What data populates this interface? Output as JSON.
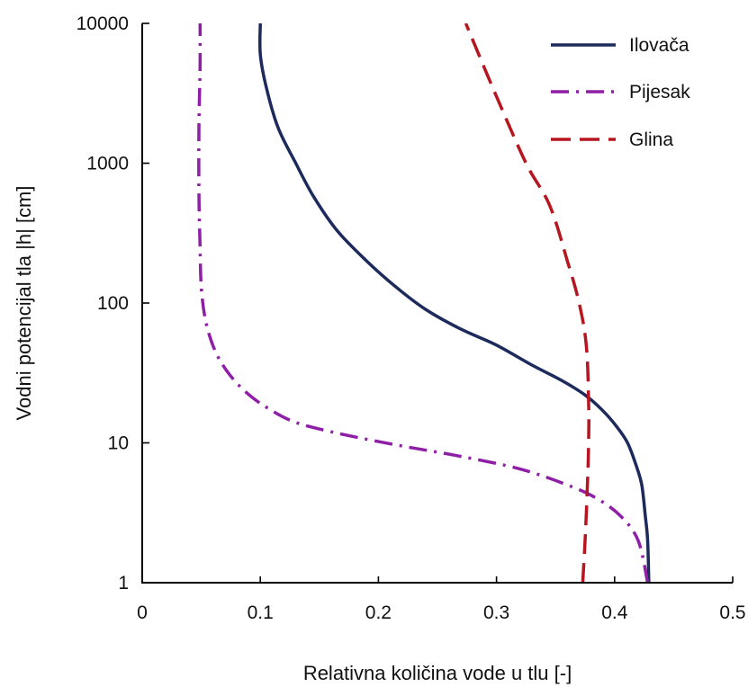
{
  "chart_data": {
    "type": "line",
    "xlabel": "Relativna količina vode u tlu [-]",
    "ylabel": "Vodni potencijal tla |h| [cm]",
    "xlim": [
      0,
      0.5
    ],
    "ylim": [
      1,
      10000
    ],
    "yscale": "log",
    "x_ticks": [
      {
        "value": 0,
        "label": "0"
      },
      {
        "value": 0.1,
        "label": "0.1"
      },
      {
        "value": 0.2,
        "label": "0.2"
      },
      {
        "value": 0.3,
        "label": "0.3"
      },
      {
        "value": 0.4,
        "label": "0.4"
      },
      {
        "value": 0.5,
        "label": "0.5"
      }
    ],
    "y_ticks": [
      {
        "value": 1,
        "label": "1"
      },
      {
        "value": 10,
        "label": "10"
      },
      {
        "value": 100,
        "label": "100"
      },
      {
        "value": 1000,
        "label": "1000"
      },
      {
        "value": 10000,
        "label": "10000"
      }
    ],
    "grid": false,
    "legend_position": "top-right",
    "series": [
      {
        "name": "Ilovača",
        "color": "#1c2a5c",
        "dash": "solid",
        "x": [
          0.429,
          0.428,
          0.426,
          0.423,
          0.418,
          0.411,
          0.402,
          0.39,
          0.375,
          0.355,
          0.33,
          0.3,
          0.27,
          0.24,
          0.215,
          0.19,
          0.165,
          0.145,
          0.13,
          0.115,
          0.105,
          0.1,
          0.1
        ],
        "y": [
          1,
          2,
          3,
          5,
          7,
          10,
          13,
          17,
          22,
          28,
          36,
          50,
          65,
          90,
          130,
          200,
          330,
          580,
          1000,
          1800,
          3500,
          6000,
          10000
        ]
      },
      {
        "name": "Pijesak",
        "color": "#8e1fa6",
        "dash": "dashdot",
        "x": [
          0.428,
          0.42,
          0.405,
          0.385,
          0.36,
          0.32,
          0.27,
          0.22,
          0.17,
          0.13,
          0.105,
          0.088,
          0.075,
          0.065,
          0.058,
          0.053,
          0.05,
          0.049,
          0.048,
          0.048,
          0.049,
          0.049
        ],
        "y": [
          1,
          2,
          3,
          4,
          5,
          6.5,
          8,
          9.5,
          11.5,
          14,
          18,
          23,
          30,
          40,
          55,
          80,
          130,
          250,
          600,
          1800,
          5000,
          10000
        ]
      },
      {
        "name": "Glina",
        "color": "#b5161f",
        "dash": "dashed",
        "x": [
          0.373,
          0.375,
          0.377,
          0.378,
          0.378,
          0.376,
          0.37,
          0.36,
          0.345,
          0.325,
          0.3,
          0.274
        ],
        "y": [
          1,
          2,
          5,
          10,
          20,
          50,
          100,
          200,
          500,
          1000,
          3000,
          10000
        ]
      }
    ]
  }
}
